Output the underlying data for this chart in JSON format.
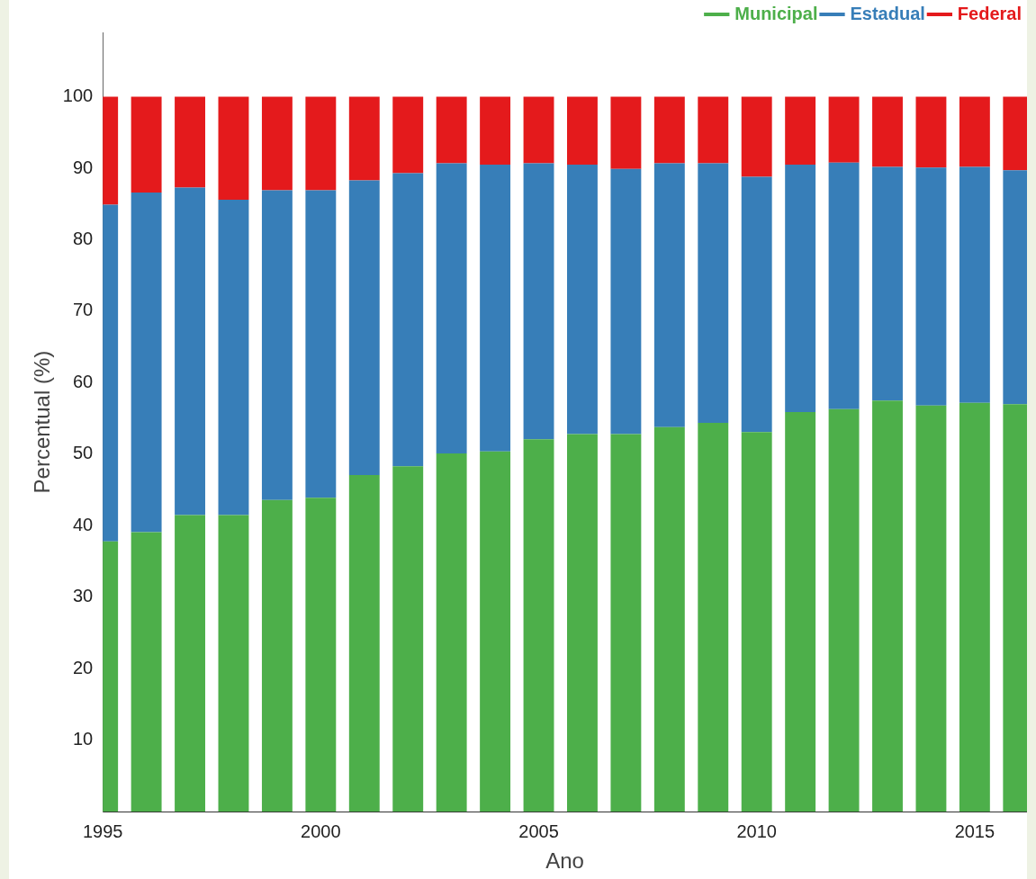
{
  "chart_data": {
    "type": "bar",
    "stacked": true,
    "xlabel": "Ano",
    "ylabel": "Percentual (%)",
    "x": [
      1995,
      1996,
      1997,
      1998,
      1999,
      2000,
      2001,
      2002,
      2003,
      2004,
      2005,
      2006,
      2007,
      2008,
      2009,
      2010,
      2011,
      2012,
      2013,
      2014,
      2015,
      2016
    ],
    "series": [
      {
        "name": "Municipal",
        "color": "#4daf4a",
        "values": [
          37.8,
          39.1,
          41.5,
          41.5,
          43.6,
          43.9,
          47.1,
          48.3,
          50.1,
          50.4,
          52.1,
          52.8,
          52.8,
          53.8,
          54.4,
          53.1,
          55.9,
          56.3,
          57.5,
          56.8,
          57.2,
          57.0
        ]
      },
      {
        "name": "Estadual",
        "color": "#377eb8",
        "values": [
          47.1,
          47.5,
          45.8,
          44.1,
          43.3,
          43.0,
          41.2,
          41.0,
          40.6,
          40.1,
          38.6,
          37.7,
          37.1,
          36.9,
          36.3,
          35.7,
          34.6,
          34.5,
          32.7,
          33.3,
          33.0,
          32.7
        ]
      },
      {
        "name": "Federal",
        "color": "#e41a1c",
        "values": [
          15.1,
          13.4,
          12.7,
          14.4,
          13.1,
          13.1,
          11.7,
          10.7,
          9.3,
          9.5,
          9.3,
          9.5,
          10.1,
          9.3,
          9.3,
          11.2,
          9.5,
          9.2,
          9.8,
          9.9,
          9.8,
          10.3
        ]
      }
    ],
    "xlim": [
      1995,
      2016.2
    ],
    "xticks": [
      1995,
      2000,
      2005,
      2010,
      2015
    ],
    "ylim": [
      0,
      109
    ],
    "yticks": [
      10,
      20,
      30,
      40,
      50,
      60,
      70,
      80,
      90,
      100
    ],
    "grid": false,
    "legend": "top right"
  }
}
